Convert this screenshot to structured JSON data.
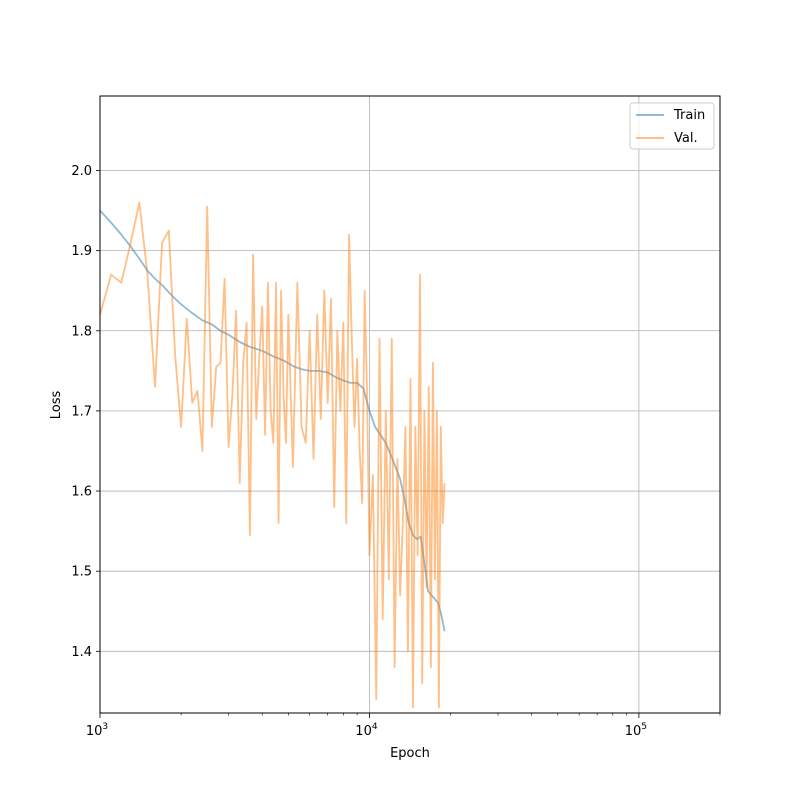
{
  "chart_data": {
    "type": "line",
    "xlabel": "Epoch",
    "ylabel": "Loss",
    "x_scale": "log",
    "xlim": [
      1000,
      200000
    ],
    "ylim": [
      1.323,
      2.093
    ],
    "grid": true,
    "legend_position": "top-right",
    "x_ticks": [
      {
        "value": 1000,
        "base": "10",
        "exp": "3"
      },
      {
        "value": 10000,
        "base": "10",
        "exp": "4"
      },
      {
        "value": 100000,
        "base": "10",
        "exp": "5"
      }
    ],
    "y_ticks": [
      {
        "value": 1.4,
        "label": "1.4"
      },
      {
        "value": 1.5,
        "label": "1.5"
      },
      {
        "value": 1.6,
        "label": "1.6"
      },
      {
        "value": 1.7,
        "label": "1.7"
      },
      {
        "value": 1.8,
        "label": "1.8"
      },
      {
        "value": 1.9,
        "label": "1.9"
      },
      {
        "value": 2.0,
        "label": "2.0"
      }
    ],
    "series": [
      {
        "name": "Train",
        "color": "#1f77b4",
        "x": [
          1000,
          1100,
          1200,
          1300,
          1400,
          1500,
          1600,
          1700,
          1800,
          1900,
          2000,
          2200,
          2400,
          2600,
          2800,
          3000,
          3300,
          3600,
          4000,
          4400,
          4800,
          5200,
          5600,
          6000,
          6500,
          7000,
          7500,
          8000,
          8500,
          9000,
          9500,
          10000,
          10500,
          11000,
          11500,
          12000,
          12500,
          13000,
          13500,
          14000,
          14500,
          15000,
          15500,
          16000,
          16500,
          17000,
          17500,
          18000,
          18500,
          19000
        ],
        "y": [
          1.95,
          1.935,
          1.92,
          1.905,
          1.89,
          1.875,
          1.865,
          1.857,
          1.848,
          1.84,
          1.833,
          1.822,
          1.813,
          1.808,
          1.8,
          1.795,
          1.786,
          1.78,
          1.775,
          1.768,
          1.763,
          1.756,
          1.752,
          1.75,
          1.75,
          1.748,
          1.742,
          1.738,
          1.735,
          1.735,
          1.728,
          1.7,
          1.68,
          1.67,
          1.66,
          1.645,
          1.63,
          1.615,
          1.59,
          1.56,
          1.545,
          1.54,
          1.543,
          1.51,
          1.475,
          1.47,
          1.465,
          1.46,
          1.445,
          1.425
        ]
      },
      {
        "name": "Val.",
        "color": "#ff7f0e",
        "x": [
          1000,
          1100,
          1200,
          1300,
          1400,
          1500,
          1600,
          1700,
          1800,
          1900,
          2000,
          2100,
          2200,
          2300,
          2400,
          2500,
          2600,
          2700,
          2800,
          2900,
          3000,
          3100,
          3200,
          3300,
          3400,
          3500,
          3600,
          3700,
          3800,
          3900,
          4000,
          4100,
          4200,
          4300,
          4400,
          4500,
          4600,
          4700,
          4800,
          4900,
          5000,
          5200,
          5400,
          5600,
          5800,
          6000,
          6200,
          6400,
          6600,
          6800,
          7000,
          7200,
          7400,
          7600,
          7800,
          8000,
          8200,
          8400,
          8600,
          8800,
          9000,
          9200,
          9400,
          9600,
          9800,
          10000,
          10300,
          10600,
          10900,
          11200,
          11500,
          11800,
          12100,
          12400,
          12700,
          13000,
          13300,
          13600,
          13900,
          14200,
          14500,
          14800,
          15100,
          15400,
          15700,
          16000,
          16300,
          16600,
          16900,
          17200,
          17500,
          17800,
          18100,
          18400,
          18700,
          19000
        ],
        "y": [
          1.82,
          1.87,
          1.86,
          1.91,
          1.96,
          1.87,
          1.73,
          1.91,
          1.925,
          1.77,
          1.68,
          1.815,
          1.71,
          1.725,
          1.65,
          1.955,
          1.68,
          1.755,
          1.76,
          1.865,
          1.655,
          1.72,
          1.825,
          1.61,
          1.76,
          1.81,
          1.545,
          1.895,
          1.69,
          1.765,
          1.83,
          1.67,
          1.86,
          1.7,
          1.66,
          1.86,
          1.56,
          1.85,
          1.72,
          1.66,
          1.82,
          1.63,
          1.86,
          1.68,
          1.66,
          1.8,
          1.64,
          1.82,
          1.69,
          1.85,
          1.71,
          1.84,
          1.58,
          1.8,
          1.7,
          1.81,
          1.56,
          1.92,
          1.79,
          1.68,
          1.765,
          1.65,
          1.585,
          1.85,
          1.72,
          1.52,
          1.62,
          1.34,
          1.79,
          1.44,
          1.7,
          1.49,
          1.79,
          1.38,
          1.64,
          1.47,
          1.56,
          1.68,
          1.4,
          1.74,
          1.33,
          1.68,
          1.52,
          1.87,
          1.36,
          1.7,
          1.48,
          1.73,
          1.38,
          1.76,
          1.49,
          1.7,
          1.33,
          1.68,
          1.56,
          1.61
        ]
      }
    ]
  }
}
